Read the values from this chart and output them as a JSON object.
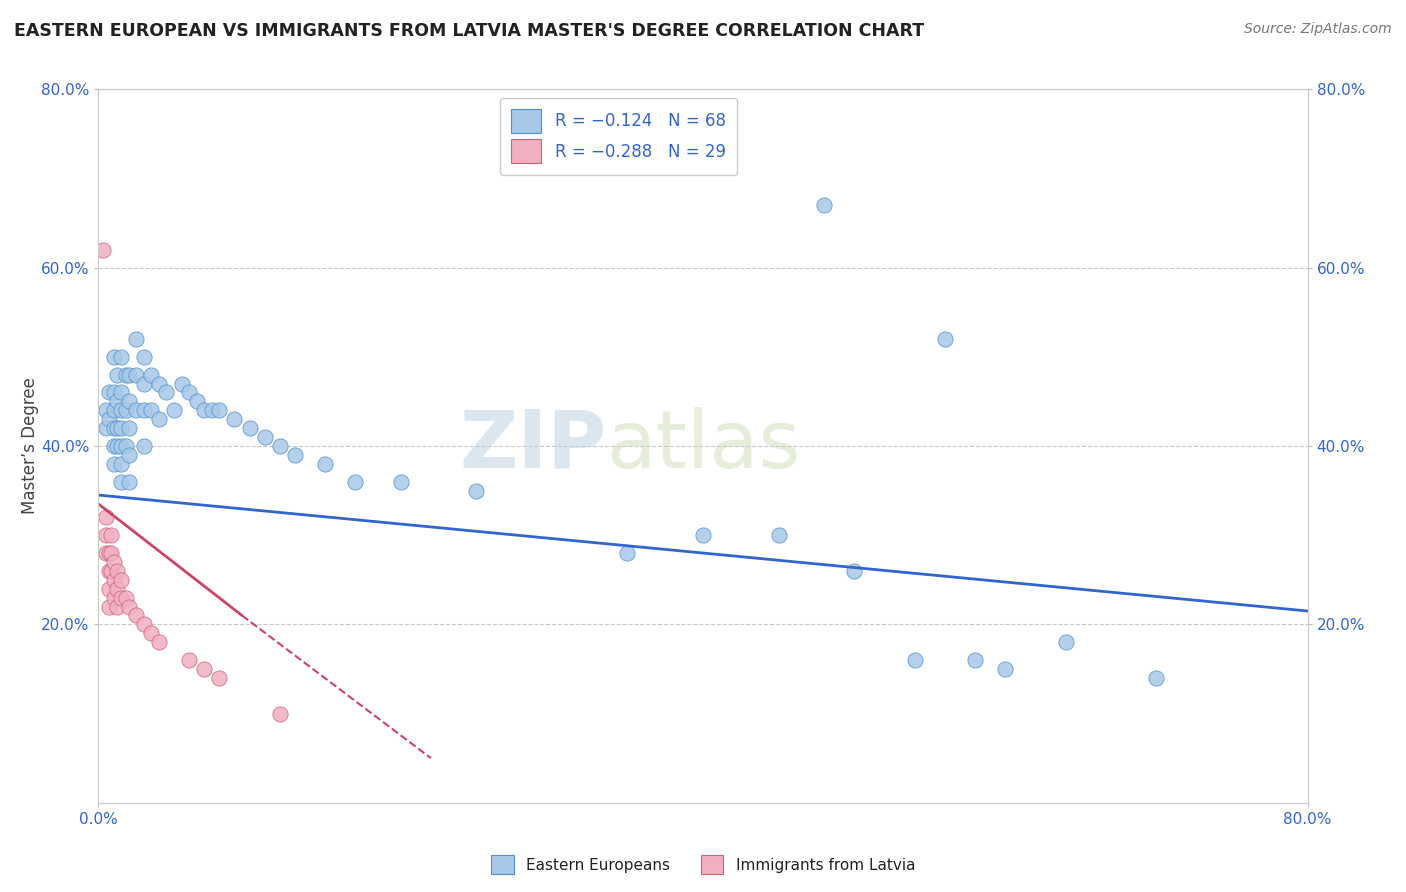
{
  "title": "EASTERN EUROPEAN VS IMMIGRANTS FROM LATVIA MASTER'S DEGREE CORRELATION CHART",
  "source": "Source: ZipAtlas.com",
  "ylabel": "Master’s Degree",
  "watermark_zip": "ZIP",
  "watermark_atlas": "atlas",
  "xlim": [
    0.0,
    0.8
  ],
  "ylim": [
    0.0,
    0.8
  ],
  "ytick_positions": [
    0.2,
    0.4,
    0.6,
    0.8
  ],
  "ytick_labels": [
    "20.0%",
    "40.0%",
    "60.0%",
    "80.0%"
  ],
  "color_blue": "#a8c8e8",
  "color_blue_edge": "#5090c8",
  "color_pink": "#f0b0c0",
  "color_pink_edge": "#d06080",
  "color_blue_line": "#3366cc",
  "color_pink_line": "#cc4466",
  "axis_label_color": "#3366cc",
  "title_color": "#222222",
  "blue_scatter": [
    [
      0.005,
      0.44
    ],
    [
      0.005,
      0.42
    ],
    [
      0.007,
      0.46
    ],
    [
      0.007,
      0.43
    ],
    [
      0.01,
      0.5
    ],
    [
      0.01,
      0.46
    ],
    [
      0.01,
      0.44
    ],
    [
      0.01,
      0.42
    ],
    [
      0.01,
      0.4
    ],
    [
      0.01,
      0.38
    ],
    [
      0.012,
      0.48
    ],
    [
      0.012,
      0.45
    ],
    [
      0.012,
      0.42
    ],
    [
      0.012,
      0.4
    ],
    [
      0.015,
      0.5
    ],
    [
      0.015,
      0.46
    ],
    [
      0.015,
      0.44
    ],
    [
      0.015,
      0.42
    ],
    [
      0.015,
      0.4
    ],
    [
      0.015,
      0.38
    ],
    [
      0.015,
      0.36
    ],
    [
      0.018,
      0.48
    ],
    [
      0.018,
      0.44
    ],
    [
      0.018,
      0.4
    ],
    [
      0.02,
      0.48
    ],
    [
      0.02,
      0.45
    ],
    [
      0.02,
      0.42
    ],
    [
      0.02,
      0.39
    ],
    [
      0.02,
      0.36
    ],
    [
      0.025,
      0.52
    ],
    [
      0.025,
      0.48
    ],
    [
      0.025,
      0.44
    ],
    [
      0.03,
      0.5
    ],
    [
      0.03,
      0.47
    ],
    [
      0.03,
      0.44
    ],
    [
      0.03,
      0.4
    ],
    [
      0.035,
      0.48
    ],
    [
      0.035,
      0.44
    ],
    [
      0.04,
      0.47
    ],
    [
      0.04,
      0.43
    ],
    [
      0.045,
      0.46
    ],
    [
      0.05,
      0.44
    ],
    [
      0.055,
      0.47
    ],
    [
      0.06,
      0.46
    ],
    [
      0.065,
      0.45
    ],
    [
      0.07,
      0.44
    ],
    [
      0.075,
      0.44
    ],
    [
      0.08,
      0.44
    ],
    [
      0.09,
      0.43
    ],
    [
      0.1,
      0.42
    ],
    [
      0.11,
      0.41
    ],
    [
      0.12,
      0.4
    ],
    [
      0.13,
      0.39
    ],
    [
      0.15,
      0.38
    ],
    [
      0.17,
      0.36
    ],
    [
      0.2,
      0.36
    ],
    [
      0.25,
      0.35
    ],
    [
      0.35,
      0.28
    ],
    [
      0.4,
      0.3
    ],
    [
      0.45,
      0.3
    ],
    [
      0.5,
      0.26
    ],
    [
      0.54,
      0.16
    ],
    [
      0.58,
      0.16
    ],
    [
      0.6,
      0.15
    ],
    [
      0.48,
      0.67
    ],
    [
      0.56,
      0.52
    ],
    [
      0.64,
      0.18
    ],
    [
      0.7,
      0.14
    ]
  ],
  "pink_scatter": [
    [
      0.003,
      0.62
    ],
    [
      0.005,
      0.32
    ],
    [
      0.005,
      0.3
    ],
    [
      0.005,
      0.28
    ],
    [
      0.007,
      0.28
    ],
    [
      0.007,
      0.26
    ],
    [
      0.007,
      0.24
    ],
    [
      0.007,
      0.22
    ],
    [
      0.008,
      0.3
    ],
    [
      0.008,
      0.28
    ],
    [
      0.008,
      0.26
    ],
    [
      0.01,
      0.27
    ],
    [
      0.01,
      0.25
    ],
    [
      0.01,
      0.23
    ],
    [
      0.012,
      0.26
    ],
    [
      0.012,
      0.24
    ],
    [
      0.012,
      0.22
    ],
    [
      0.015,
      0.25
    ],
    [
      0.015,
      0.23
    ],
    [
      0.018,
      0.23
    ],
    [
      0.02,
      0.22
    ],
    [
      0.025,
      0.21
    ],
    [
      0.03,
      0.2
    ],
    [
      0.035,
      0.19
    ],
    [
      0.04,
      0.18
    ],
    [
      0.06,
      0.16
    ],
    [
      0.07,
      0.15
    ],
    [
      0.08,
      0.14
    ],
    [
      0.12,
      0.1
    ]
  ],
  "blue_trendline_solid": [
    [
      0.0,
      0.345
    ],
    [
      0.8,
      0.215
    ]
  ],
  "pink_trendline_solid": [
    [
      0.0,
      0.335
    ],
    [
      0.095,
      0.21
    ]
  ],
  "pink_trendline_dash": [
    [
      0.095,
      0.21
    ],
    [
      0.22,
      0.05
    ]
  ]
}
